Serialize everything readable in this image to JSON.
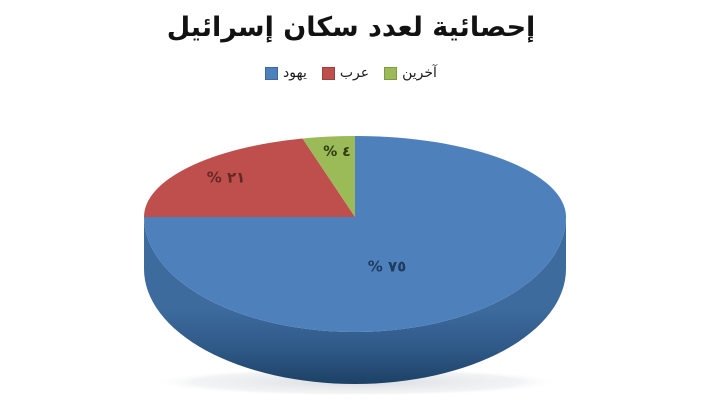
{
  "chart_data": {
    "type": "pie",
    "title": "إحصائية لعدد سكان إسرائيل",
    "labels": [
      "يهود",
      "عرب",
      "آخرين"
    ],
    "values": [
      75,
      21,
      4
    ],
    "colors": [
      "#4E80BC",
      "#BF4F4C",
      "#9ABB58"
    ],
    "side_gradient": [
      "#3D6B9E",
      "#2E5886",
      "#1D4166"
    ],
    "data_labels": [
      "% ٧٥",
      "% ٢١",
      "% ٤"
    ],
    "data_label_colors": [
      "#1F3B60",
      "#642825",
      "#2F3B10"
    ],
    "legend_position": "top",
    "style": "3d",
    "direction": "clockwise",
    "start_angle_deg": 0
  }
}
